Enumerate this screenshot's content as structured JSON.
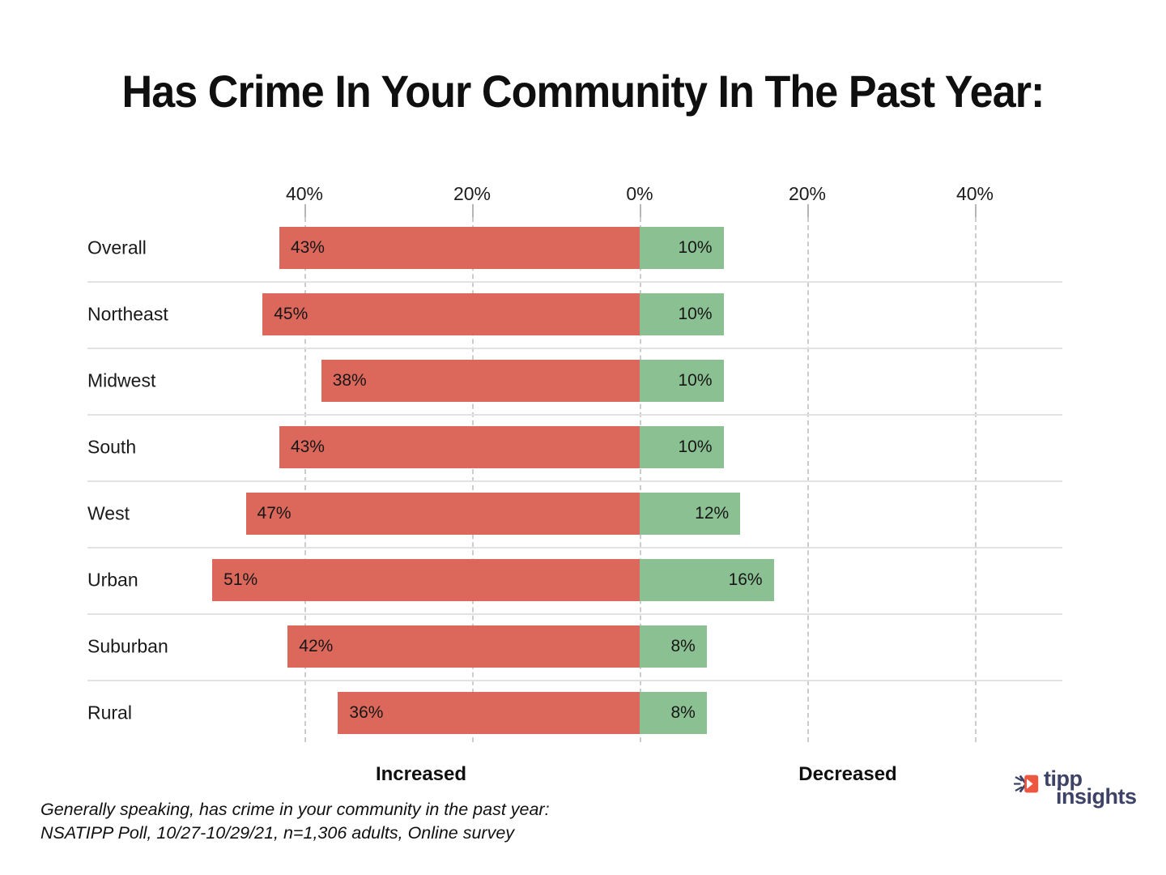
{
  "title": "Has Crime In Your Community In The Past Year:",
  "chart_data": {
    "type": "bar",
    "orientation": "horizontal-diverging",
    "categories": [
      "Overall",
      "Northeast",
      "Midwest",
      "South",
      "West",
      "Urban",
      "Suburban",
      "Rural"
    ],
    "series": [
      {
        "name": "Increased",
        "color": "#DC685C",
        "values": [
          43,
          45,
          38,
          43,
          47,
          51,
          42,
          36
        ]
      },
      {
        "name": "Decreased",
        "color": "#8BC092",
        "values": [
          10,
          10,
          10,
          10,
          12,
          16,
          8,
          8
        ]
      }
    ],
    "value_suffix": "%",
    "axis": {
      "tick_values": [
        -40,
        -20,
        0,
        20,
        40
      ],
      "tick_labels": [
        "40%",
        "20%",
        "0%",
        "20%",
        "40%"
      ],
      "xlim": [
        -51,
        45
      ],
      "grid": "dashed-vertical-gridlines"
    },
    "legend": {
      "left_label": "Increased",
      "right_label": "Decreased",
      "position": "bottom"
    }
  },
  "footnote": {
    "line1": "Generally speaking, has crime in your community in the past year:",
    "line2": "NSATIPP Poll, 10/27-10/29/21, n=1,306 adults, Online survey"
  },
  "logo": {
    "line1": "tipp",
    "line2": "insights",
    "icon": "tipp-arrow-icon",
    "text_color": "#3D4266",
    "icon_color": "#ED5740"
  },
  "colors": {
    "increased": "#DC685C",
    "decreased": "#8BC092",
    "gridline": "#cccccc",
    "separator": "#e2e2e2",
    "text": "#151515"
  }
}
